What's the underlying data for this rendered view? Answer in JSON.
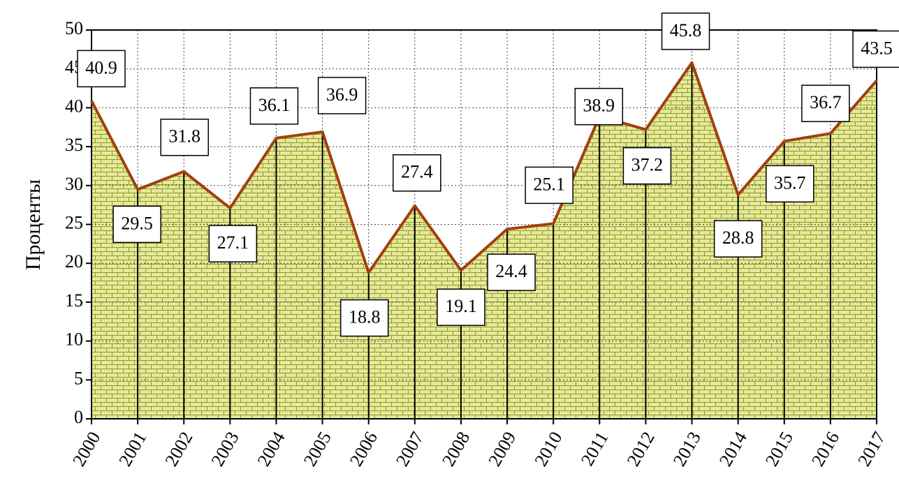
{
  "chart_data": {
    "type": "area",
    "y_label": "Проценты",
    "categories": [
      "2000",
      "2001",
      "2002",
      "2003",
      "2004",
      "2005",
      "2006",
      "2007",
      "2008",
      "2009",
      "2010",
      "2011",
      "2012",
      "2013",
      "2014",
      "2015",
      "2016",
      "2017"
    ],
    "values": [
      40.9,
      29.5,
      31.8,
      27.1,
      36.1,
      36.9,
      18.8,
      27.4,
      19.1,
      24.4,
      25.1,
      38.9,
      37.2,
      45.8,
      28.8,
      35.7,
      36.7,
      43.5
    ],
    "color": "#a0400f",
    "fill_color": "#e6e89a",
    "ylim": [
      0,
      50
    ],
    "yticks": [
      0,
      5,
      10,
      15,
      20,
      25,
      30,
      35,
      40,
      45,
      50
    ],
    "grid": true
  }
}
